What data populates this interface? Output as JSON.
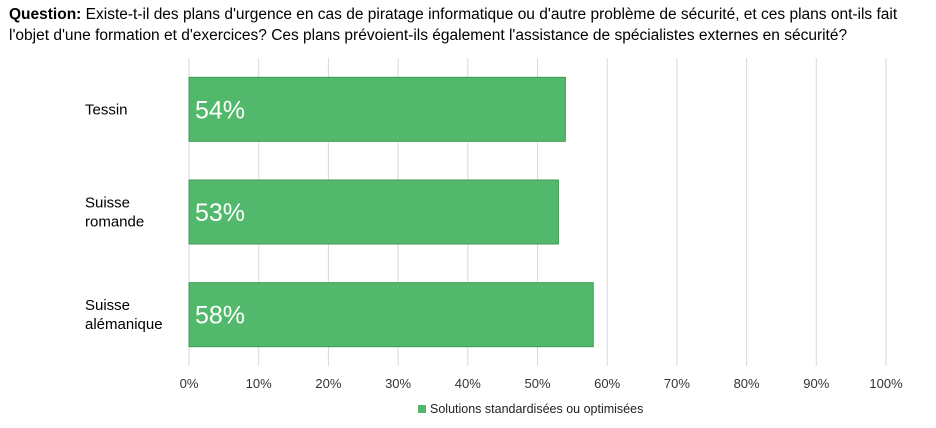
{
  "question": {
    "label": "Question:",
    "text": "Existe-t-il des plans d'urgence en cas de piratage informatique ou d'autre problème de sécurité, et ces plans ont-ils fait l'objet d'une formation et d'exercices? Ces plans prévoient-ils également l'assistance de spécialistes externes en sécurité?"
  },
  "chart_data": {
    "type": "bar",
    "orientation": "horizontal",
    "categories": [
      "Tessin",
      "Suisse romande",
      "Suisse alémanique"
    ],
    "category_lines": [
      [
        "Tessin"
      ],
      [
        "Suisse",
        "romande"
      ],
      [
        "Suisse",
        "alémanique"
      ]
    ],
    "series": [
      {
        "name": "Solutions standardisées ou optimisées",
        "values": [
          54,
          53,
          58
        ],
        "color": "#52b96c"
      }
    ],
    "data_labels": [
      "54%",
      "53%",
      "58%"
    ],
    "xlim": [
      0,
      100
    ],
    "xticks": [
      "0%",
      "10%",
      "20%",
      "30%",
      "40%",
      "50%",
      "60%",
      "70%",
      "80%",
      "90%",
      "100%"
    ],
    "grid": true,
    "legend_position": "bottom"
  }
}
